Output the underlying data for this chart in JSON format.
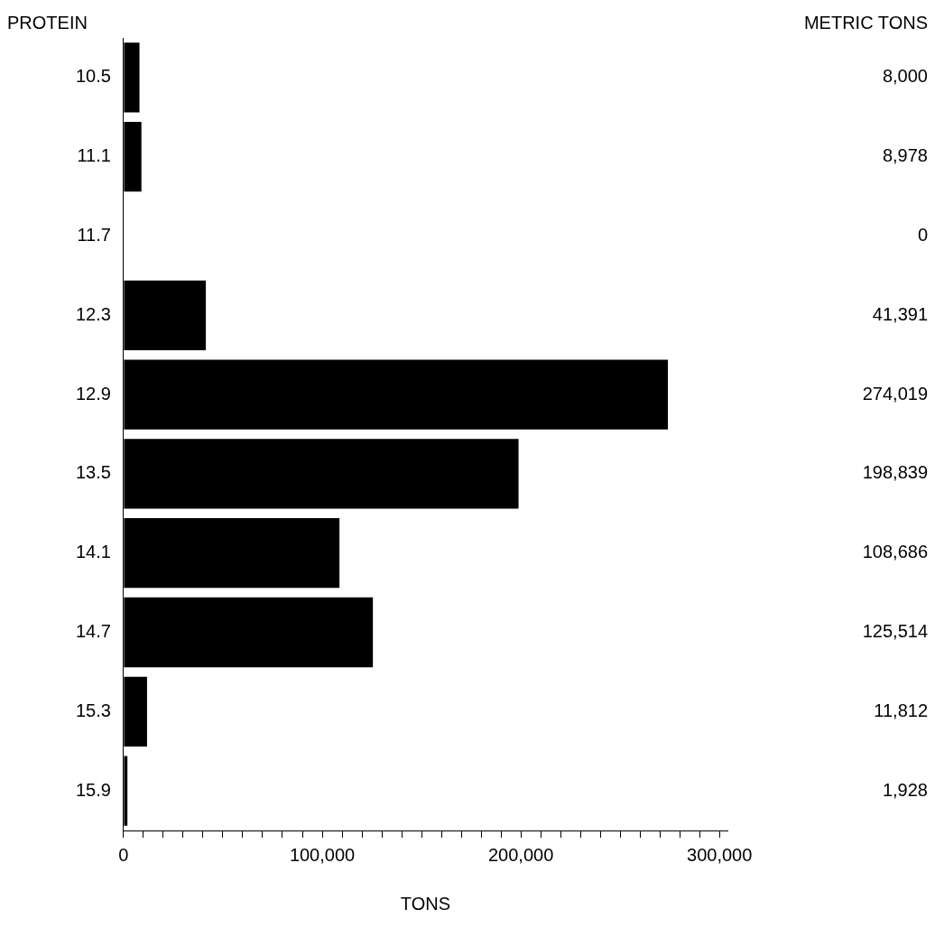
{
  "chart_data": {
    "type": "bar",
    "orientation": "horizontal",
    "ylabel": "PROTEIN",
    "xlabel": "TONS",
    "annotations": [
      "METRIC TONS"
    ],
    "categories": [
      "10.5",
      "11.1",
      "11.7",
      "12.3",
      "12.9",
      "13.5",
      "14.1",
      "14.7",
      "15.3",
      "15.9"
    ],
    "values": [
      8000,
      8978,
      0,
      41391,
      274019,
      198839,
      108686,
      125514,
      11812,
      1928
    ],
    "value_labels": [
      "8,000",
      "8,978",
      "0",
      "41,391",
      "274,019",
      "198,839",
      "108,686",
      "125,514",
      "11,812",
      "1,928"
    ],
    "color": "#000000",
    "grid": false,
    "legend": false,
    "xlim": [
      0,
      304000
    ],
    "xticks": [
      0,
      {
        "value": 10000,
        "label": null
      },
      {
        "value": 20000,
        "label": null
      },
      {
        "value": 30000,
        "label": null
      },
      {
        "value": 40000,
        "label": null
      },
      {
        "value": 50000,
        "label": null
      },
      {
        "value": 60000,
        "label": null
      },
      {
        "value": 70000,
        "label": null
      },
      {
        "value": 80000,
        "label": null
      },
      {
        "value": 90000,
        "label": null
      },
      {
        "value": 100000,
        "label": "100,000"
      },
      {
        "value": 110000,
        "label": null
      },
      {
        "value": 120000,
        "label": null
      },
      {
        "value": 130000,
        "label": null
      },
      {
        "value": 140000,
        "label": null
      },
      {
        "value": 150000,
        "label": null
      },
      {
        "value": 160000,
        "label": null
      },
      {
        "value": 170000,
        "label": null
      },
      {
        "value": 180000,
        "label": null
      },
      {
        "value": 190000,
        "label": null
      },
      {
        "value": 200000,
        "label": "200,000"
      },
      {
        "value": 210000,
        "label": null
      },
      {
        "value": 220000,
        "label": null
      },
      {
        "value": 230000,
        "label": null
      },
      {
        "value": 240000,
        "label": null
      },
      {
        "value": 250000,
        "label": null
      },
      {
        "value": 260000,
        "label": null
      },
      {
        "value": 270000,
        "label": null
      },
      {
        "value": 280000,
        "label": null
      },
      {
        "value": 290000,
        "label": null
      },
      {
        "value": 300000,
        "label": "300,000"
      }
    ]
  }
}
